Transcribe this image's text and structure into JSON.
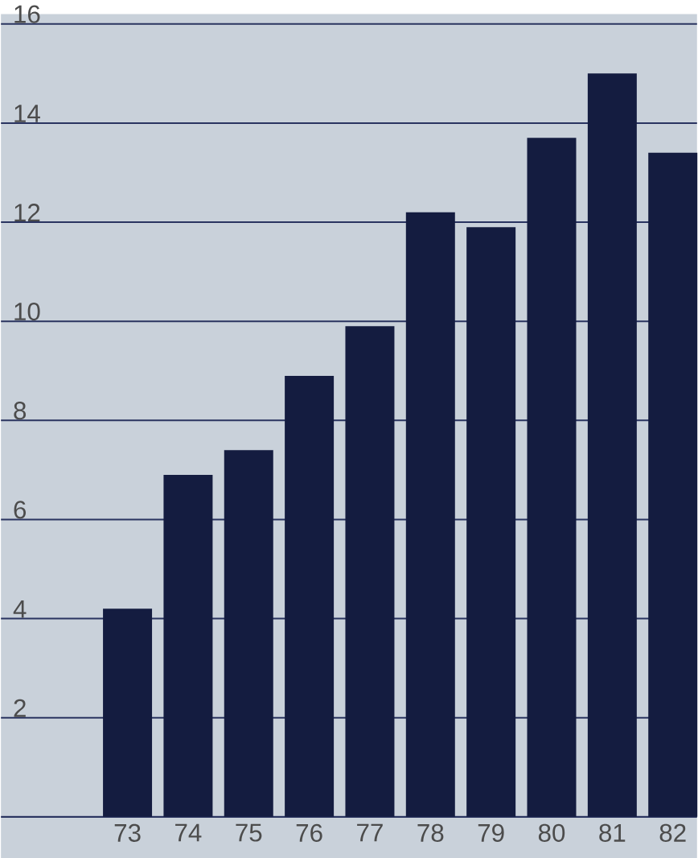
{
  "chart_data": {
    "type": "bar",
    "categories": [
      "73",
      "74",
      "75",
      "76",
      "77",
      "78",
      "79",
      "80",
      "81",
      "82"
    ],
    "values": [
      4.2,
      6.9,
      7.4,
      8.9,
      9.9,
      12.2,
      11.9,
      13.7,
      15.0,
      13.4
    ],
    "color": "#141c40",
    "ylim": [
      0,
      16.2
    ],
    "yticks": [
      2,
      4,
      6,
      8,
      10,
      12,
      14,
      16
    ],
    "grid": "y"
  }
}
